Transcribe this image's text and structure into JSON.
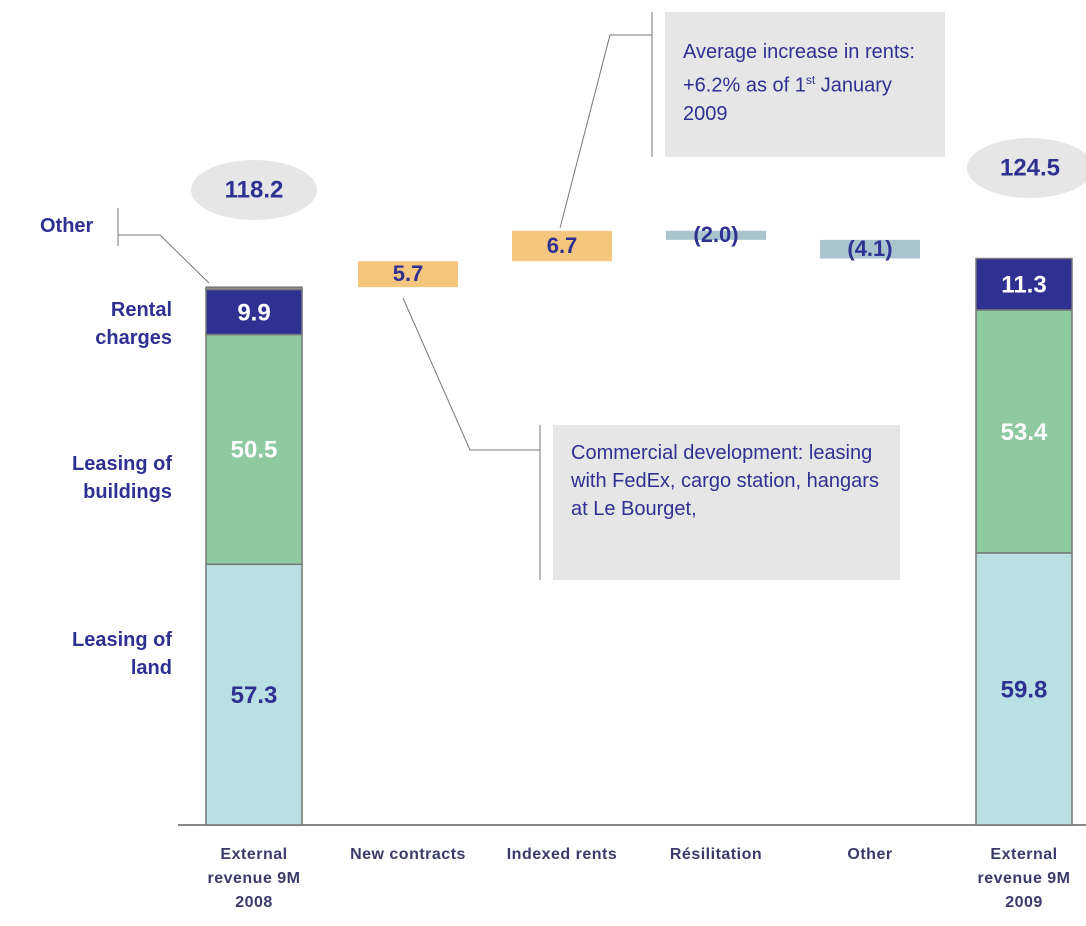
{
  "chart_data": {
    "type": "waterfall",
    "categories": [
      "External revenue 9M 2008",
      "New contracts",
      "Indexed rents",
      "Résilitation",
      "Other",
      "External revenue 9M 2009"
    ],
    "series": [
      {
        "name": "Leasing of land",
        "color": "#b9e0e3",
        "label_color": "#2e3192",
        "values": [
          57.3,
          null,
          null,
          null,
          null,
          59.8
        ]
      },
      {
        "name": "Leasing of buildings",
        "color": "#8ec9a0",
        "label_color": "#ffffff",
        "values": [
          50.5,
          null,
          null,
          null,
          null,
          53.4
        ]
      },
      {
        "name": "Rental charges",
        "color": "#2e3192",
        "label_color": "#ffffff",
        "values": [
          9.9,
          null,
          null,
          null,
          null,
          11.3
        ]
      },
      {
        "name": "Other",
        "color": "#9a9a9a",
        "values": [
          0.5,
          null,
          null,
          null,
          null,
          0
        ]
      }
    ],
    "totals": [
      118.2,
      null,
      null,
      null,
      null,
      124.5
    ],
    "changes": [
      null,
      5.7,
      6.7,
      -2.0,
      -4.1,
      null
    ],
    "change_labels": [
      null,
      "5.7",
      "6.7",
      "(2.0)",
      "(4.1)",
      null
    ],
    "increase_color": "#f5c77e",
    "decrease_color": "#a9c4cc",
    "ylim": [
      0,
      180
    ],
    "annotations": [
      {
        "parts": [
          "Average increase in rents: +6.2% as of 1",
          "st",
          "  January 2009"
        ]
      },
      {
        "parts": [
          "Commercial development: leasing with FedEx, cargo station, hangars at Le Bourget,"
        ]
      }
    ]
  }
}
